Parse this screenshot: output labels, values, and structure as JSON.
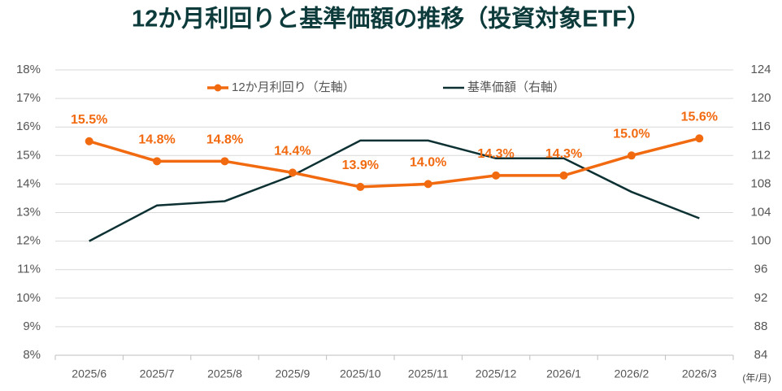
{
  "chart_data": {
    "type": "line",
    "title": "12か月利回りと基準価額の推移（投資対象ETF）",
    "x_label": "(年/月)",
    "categories": [
      "2025/6",
      "2025/7",
      "2025/8",
      "2025/9",
      "2025/10",
      "2025/11",
      "2025/12",
      "2026/1",
      "2026/2",
      "2026/3"
    ],
    "series": [
      {
        "name": "12か月利回り（左軸）",
        "color": "#f26a10",
        "axis": "y",
        "values": [
          15.5,
          14.8,
          14.8,
          14.4,
          13.9,
          14.0,
          14.3,
          14.3,
          15.0,
          15.6
        ],
        "value_labels": [
          "15.5%",
          "14.8%",
          "14.8%",
          "14.4%",
          "13.9%",
          "14.0%",
          "14.3%",
          "14.3%",
          "15.0%",
          "15.6%"
        ]
      },
      {
        "name": "基準価額（右軸）",
        "color": "#0d3133",
        "axis": "y2",
        "values": [
          100,
          105,
          105.6,
          109.2,
          114.1,
          114.1,
          111.6,
          111.6,
          106.9,
          103.2
        ]
      }
    ],
    "ylim": [
      8,
      18
    ],
    "yticks": [
      {
        "value": 8,
        "label": "8%"
      },
      {
        "value": 9,
        "label": "9%"
      },
      {
        "value": 10,
        "label": "10%"
      },
      {
        "value": 11,
        "label": "11%"
      },
      {
        "value": 12,
        "label": "12%"
      },
      {
        "value": 13,
        "label": "13%"
      },
      {
        "value": 14,
        "label": "14%"
      },
      {
        "value": 15,
        "label": "15%"
      },
      {
        "value": 16,
        "label": "16%"
      },
      {
        "value": 17,
        "label": "17%"
      },
      {
        "value": 18,
        "label": "18%"
      }
    ],
    "y2lim": [
      84,
      124
    ],
    "y2ticks": [
      84,
      88,
      92,
      96,
      100,
      104,
      108,
      112,
      116,
      120,
      124
    ],
    "grid": true,
    "legend": "top"
  }
}
